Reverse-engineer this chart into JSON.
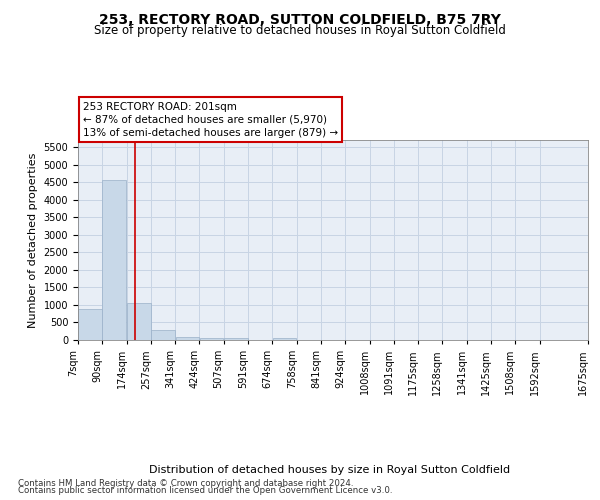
{
  "title": "253, RECTORY ROAD, SUTTON COLDFIELD, B75 7RY",
  "subtitle": "Size of property relative to detached houses in Royal Sutton Coldfield",
  "xlabel": "Distribution of detached houses by size in Royal Sutton Coldfield",
  "ylabel": "Number of detached properties",
  "footnote1": "Contains HM Land Registry data © Crown copyright and database right 2024.",
  "footnote2": "Contains public sector information licensed under the Open Government Licence v3.0.",
  "bar_left_edges": [
    7,
    90,
    174,
    257,
    341,
    424,
    507,
    591,
    674,
    758,
    841,
    924,
    1008,
    1091,
    1175,
    1258,
    1341,
    1425,
    1508,
    1592
  ],
  "bar_widths": [
    83,
    84,
    83,
    84,
    83,
    83,
    84,
    83,
    84,
    83,
    83,
    84,
    83,
    84,
    83,
    83,
    84,
    83,
    84,
    83
  ],
  "bar_heights": [
    880,
    4550,
    1060,
    290,
    85,
    70,
    50,
    0,
    55,
    0,
    0,
    0,
    0,
    0,
    0,
    0,
    0,
    0,
    0,
    0
  ],
  "bar_color": "#c8d8e8",
  "bar_edgecolor": "#9ab0c8",
  "grid_color": "#c8d4e4",
  "bg_color": "#e8eef6",
  "property_size": 201,
  "property_line_color": "#cc0000",
  "annotation_line1": "253 RECTORY ROAD: 201sqm",
  "annotation_line2": "← 87% of detached houses are smaller (5,970)",
  "annotation_line3": "13% of semi-detached houses are larger (879) →",
  "annotation_box_color": "#ffffff",
  "annotation_border_color": "#cc0000",
  "tick_labels": [
    "7sqm",
    "90sqm",
    "174sqm",
    "257sqm",
    "341sqm",
    "424sqm",
    "507sqm",
    "591sqm",
    "674sqm",
    "758sqm",
    "841sqm",
    "924sqm",
    "1008sqm",
    "1091sqm",
    "1175sqm",
    "1258sqm",
    "1341sqm",
    "1425sqm",
    "1508sqm",
    "1592sqm",
    "1675sqm"
  ],
  "ylim": [
    0,
    5700
  ],
  "yticks": [
    0,
    500,
    1000,
    1500,
    2000,
    2500,
    3000,
    3500,
    4000,
    4500,
    5000,
    5500
  ],
  "title_fontsize": 10,
  "subtitle_fontsize": 8.5,
  "axis_label_fontsize": 8,
  "tick_fontsize": 7,
  "annotation_fontsize": 7.5,
  "footnote_fontsize": 6.2,
  "ylabel_fontsize": 8
}
